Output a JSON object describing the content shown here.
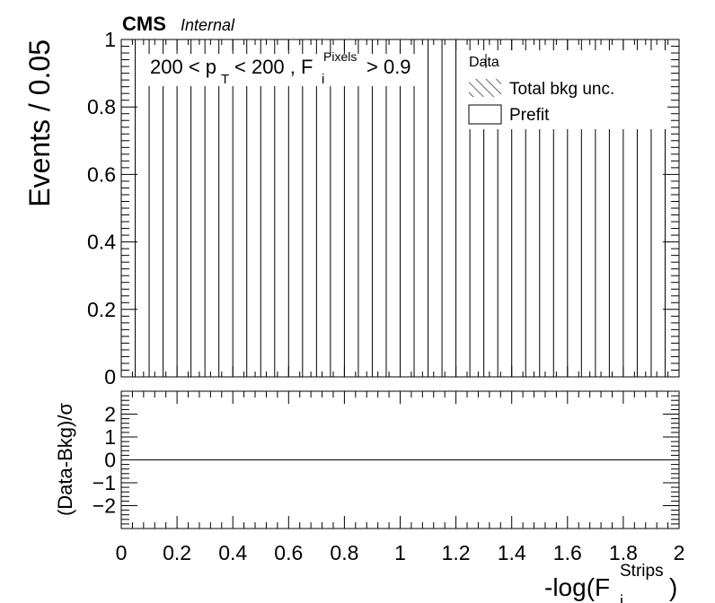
{
  "header": {
    "experiment": "CMS",
    "status": "Internal"
  },
  "cut_label": {
    "pt_low": "200 < p",
    "pt_sub": "T",
    "pt_high": "< 200 , F",
    "f_sup": "Pixels",
    "f_sub": "i",
    "f_cut": "> 0.9"
  },
  "legend": {
    "placement": "top-right",
    "entries": [
      {
        "label": "Data",
        "style": "marker"
      },
      {
        "label": "Total bkg unc.",
        "style": "hatched"
      },
      {
        "label": "Prefit",
        "style": "box"
      }
    ]
  },
  "chart_data": [
    {
      "type": "bar",
      "panel": "main",
      "ylabel": "Events / 0.05",
      "xlim": [
        0,
        2
      ],
      "ylim": [
        0,
        1
      ],
      "yticks": [
        0,
        0.2,
        0.4,
        0.6,
        0.8,
        1
      ],
      "ytick_labels": [
        "0",
        "0.2",
        "0.4",
        "0.6",
        "0.8",
        "1"
      ],
      "bin_width": 0.05,
      "bin_edges": [
        0,
        0.05,
        0.1,
        0.15,
        0.2,
        0.25,
        0.3,
        0.35,
        0.4,
        0.45,
        0.5,
        0.55,
        0.6,
        0.65,
        0.7,
        0.75,
        0.8,
        0.85,
        0.9,
        0.95,
        1.0,
        1.05,
        1.1,
        1.15,
        1.2,
        1.25,
        1.3,
        1.35,
        1.4,
        1.45,
        1.5,
        1.55,
        1.6,
        1.65,
        1.7,
        1.75,
        1.8,
        1.85,
        1.9,
        1.95,
        2.0
      ],
      "values": [
        0,
        0,
        0,
        0,
        0,
        0,
        0,
        0,
        0,
        0,
        0,
        0,
        0,
        0,
        0,
        0,
        0,
        0,
        0,
        0,
        0,
        0,
        0,
        0,
        0,
        0,
        0,
        0,
        0,
        0,
        0,
        0,
        0,
        0,
        0,
        0,
        0,
        0,
        0,
        0
      ]
    },
    {
      "type": "line",
      "panel": "ratio",
      "ylabel": "(Data-Bkg)/σ",
      "xlabel_main": "-log(F",
      "xlabel_sup": "Strips",
      "xlabel_sub": "i",
      "xlabel_close": ")",
      "xlim": [
        0,
        2
      ],
      "ylim": [
        -3,
        3
      ],
      "yticks": [
        -2,
        -1,
        0,
        1,
        2
      ],
      "ytick_labels": [
        "−2",
        "−1",
        "0",
        "1",
        "2"
      ],
      "xticks": [
        0,
        0.2,
        0.4,
        0.6,
        0.8,
        1,
        1.2,
        1.4,
        1.6,
        1.8,
        2
      ],
      "xtick_labels": [
        "0",
        "0.2",
        "0.4",
        "0.6",
        "0.8",
        "1",
        "1.2",
        "1.4",
        "1.6",
        "1.8",
        "2"
      ],
      "reference_line": 0
    }
  ]
}
